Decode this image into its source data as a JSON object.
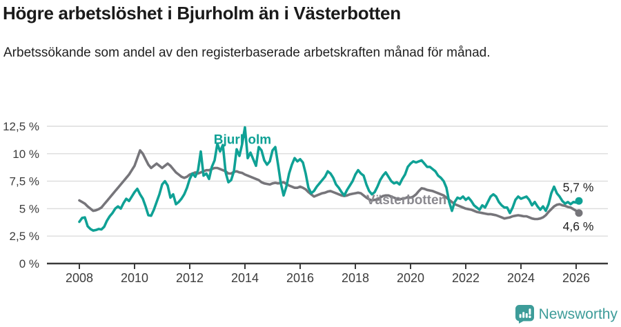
{
  "header": {
    "title": "Högre arbetslöshet i Bjurholm än i Västerbotten",
    "subtitle": "Arbetssökande som andel av den registerbaserade arbetskraften månad för månad."
  },
  "footer": {
    "brand": "Newsworthy",
    "brand_color": "#3d9c99"
  },
  "chart_data": {
    "type": "line",
    "title": "Högre arbetslöshet i Bjurholm än i Västerbotten",
    "subtitle": "Arbetssökande som andel av den registerbaserade arbetskraften månad för månad.",
    "unit": "%",
    "grid": "horizontal",
    "legend_position": "inline-annotations",
    "x_start": 2008.0,
    "x_step": 0.1,
    "xlim": [
      2006.8,
      2027.1
    ],
    "ylim": [
      0,
      13.2
    ],
    "x_axis_ticks": [
      2008,
      2010,
      2012,
      2014,
      2016,
      2018,
      2020,
      2022,
      2024,
      2026
    ],
    "y_ticks": [
      0,
      2.5,
      5,
      7.5,
      10,
      12.5
    ],
    "y_tick_labels": [
      "0 %",
      "2,5 %",
      "5 %",
      "7,5 %",
      "10 %",
      "12,5 %"
    ],
    "annotations": [
      {
        "text": "Bjurholm",
        "x": 2012.87,
        "y": 10.9,
        "color": "#0fa195"
      },
      {
        "text": "Västerbotten",
        "x": 2018.4,
        "y": 5.4,
        "color": "#8a898f"
      }
    ],
    "series": [
      {
        "name": "Bjurholm",
        "color": "#0fa195",
        "end_label": "5,7 %",
        "end_value": 5.7,
        "values": [
          3.8,
          4.15,
          4.2,
          3.4,
          3.15,
          3.0,
          3.05,
          3.15,
          3.1,
          3.35,
          3.9,
          4.3,
          4.6,
          5.0,
          5.2,
          5.0,
          5.5,
          5.9,
          5.7,
          6.1,
          6.5,
          6.8,
          6.3,
          5.9,
          5.2,
          4.4,
          4.35,
          4.9,
          5.6,
          6.3,
          7.2,
          7.5,
          7.1,
          6.0,
          6.3,
          5.4,
          5.6,
          5.9,
          6.3,
          6.9,
          7.7,
          8.2,
          7.9,
          8.5,
          10.2,
          8.0,
          8.2,
          7.7,
          8.8,
          9.4,
          10.9,
          10.2,
          10.8,
          8.3,
          7.4,
          7.6,
          8.4,
          10.4,
          9.8,
          10.9,
          12.4,
          9.6,
          10.1,
          9.5,
          8.9,
          10.6,
          10.3,
          9.4,
          9.0,
          9.3,
          10.3,
          10.6,
          9.0,
          7.3,
          6.2,
          7.0,
          8.2,
          9.0,
          9.6,
          9.3,
          9.5,
          9.2,
          8.2,
          6.9,
          6.4,
          6.6,
          7.0,
          7.3,
          7.6,
          7.9,
          8.4,
          8.2,
          7.8,
          7.2,
          6.9,
          6.5,
          6.2,
          6.7,
          7.1,
          7.5,
          8.1,
          8.5,
          8.2,
          8.0,
          7.2,
          6.6,
          6.3,
          6.5,
          7.0,
          7.6,
          8.0,
          8.3,
          7.9,
          7.5,
          7.3,
          7.4,
          7.2,
          7.7,
          8.1,
          8.8,
          9.1,
          9.3,
          9.2,
          9.3,
          9.4,
          9.1,
          8.8,
          8.8,
          8.6,
          8.4,
          8.0,
          7.8,
          7.5,
          6.9,
          5.6,
          4.8,
          5.6,
          6.0,
          5.9,
          6.1,
          5.8,
          6.0,
          5.7,
          5.3,
          5.1,
          4.9,
          5.3,
          5.1,
          5.6,
          6.1,
          6.3,
          6.1,
          5.6,
          5.3,
          5.1,
          5.1,
          4.6,
          5.1,
          5.8,
          6.1,
          5.9,
          6.0,
          6.1,
          5.8,
          5.3,
          5.6,
          5.2,
          4.9,
          5.2,
          4.8,
          5.4,
          6.4,
          7.0,
          6.4,
          6.1,
          5.7,
          5.45,
          5.6,
          5.4,
          5.6,
          5.55,
          5.7
        ]
      },
      {
        "name": "Västerbotten",
        "color": "#76757a",
        "end_label": "4,6 %",
        "end_value": 4.6,
        "values": [
          5.75,
          5.6,
          5.45,
          5.2,
          5.0,
          4.8,
          4.85,
          4.95,
          5.1,
          5.4,
          5.7,
          6.0,
          6.3,
          6.6,
          6.9,
          7.2,
          7.5,
          7.8,
          8.1,
          8.5,
          8.9,
          9.6,
          10.3,
          10.0,
          9.5,
          9.0,
          8.7,
          8.9,
          9.1,
          8.9,
          8.7,
          8.9,
          9.1,
          8.9,
          8.6,
          8.3,
          8.1,
          7.9,
          7.8,
          7.9,
          8.1,
          8.2,
          8.3,
          8.2,
          8.3,
          8.4,
          8.5,
          8.5,
          8.6,
          8.7,
          8.7,
          8.6,
          8.5,
          8.4,
          8.2,
          8.2,
          8.35,
          8.4,
          8.3,
          8.25,
          8.1,
          8.0,
          7.9,
          7.8,
          7.7,
          7.6,
          7.4,
          7.3,
          7.25,
          7.2,
          7.3,
          7.35,
          7.3,
          7.35,
          7.4,
          7.25,
          7.1,
          7.0,
          6.9,
          6.9,
          7.0,
          6.9,
          6.75,
          6.5,
          6.3,
          6.1,
          6.2,
          6.3,
          6.4,
          6.45,
          6.55,
          6.6,
          6.5,
          6.4,
          6.3,
          6.2,
          6.15,
          6.2,
          6.3,
          6.35,
          6.4,
          6.45,
          6.4,
          6.2,
          6.0,
          5.85,
          5.75,
          5.8,
          5.85,
          6.0,
          6.15,
          6.2,
          6.2,
          6.1,
          6.0,
          5.9,
          5.85,
          5.9,
          5.95,
          6.05,
          6.0,
          6.1,
          6.3,
          6.6,
          6.85,
          6.8,
          6.7,
          6.65,
          6.6,
          6.5,
          6.4,
          6.3,
          6.2,
          6.0,
          5.8,
          5.6,
          5.4,
          5.3,
          5.2,
          5.1,
          5.0,
          4.95,
          4.9,
          4.8,
          4.7,
          4.65,
          4.6,
          4.55,
          4.5,
          4.5,
          4.45,
          4.4,
          4.3,
          4.2,
          4.1,
          4.15,
          4.2,
          4.3,
          4.35,
          4.4,
          4.35,
          4.3,
          4.3,
          4.2,
          4.1,
          4.05,
          4.05,
          4.1,
          4.2,
          4.4,
          4.7,
          4.95,
          5.2,
          5.35,
          5.4,
          5.3,
          5.25,
          5.15,
          5.1,
          4.95,
          4.8,
          4.6
        ]
      }
    ]
  }
}
